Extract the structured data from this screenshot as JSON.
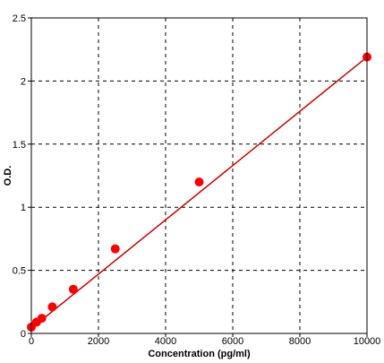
{
  "chart_data": {
    "type": "scatter",
    "title": "",
    "xlabel": "Concentration (pg/ml)",
    "ylabel": "O.D.",
    "xlim": [
      0,
      10000
    ],
    "ylim": [
      0,
      2.5
    ],
    "xticks": [
      0,
      2000,
      4000,
      6000,
      8000,
      10000
    ],
    "xtick_labels": [
      "0",
      "2000",
      "4000",
      "6000",
      "8000",
      "10000"
    ],
    "yticks": [
      0,
      0.5,
      1,
      1.5,
      2,
      2.5
    ],
    "ytick_labels": [
      "0",
      "0.5",
      "1",
      "1.5",
      "2",
      "2.5"
    ],
    "grid": true,
    "grid_style": "dashed",
    "series": [
      {
        "x": [
          0,
          156,
          312,
          625,
          1250,
          2500,
          5000,
          10000
        ],
        "y": [
          0.05,
          0.09,
          0.12,
          0.21,
          0.35,
          0.67,
          1.2,
          2.19
        ],
        "marker_color": "#ff0000"
      }
    ],
    "fit_line": {
      "x": [
        0,
        10000
      ],
      "y": [
        0.04,
        2.19
      ],
      "color": "#cc0000"
    }
  }
}
